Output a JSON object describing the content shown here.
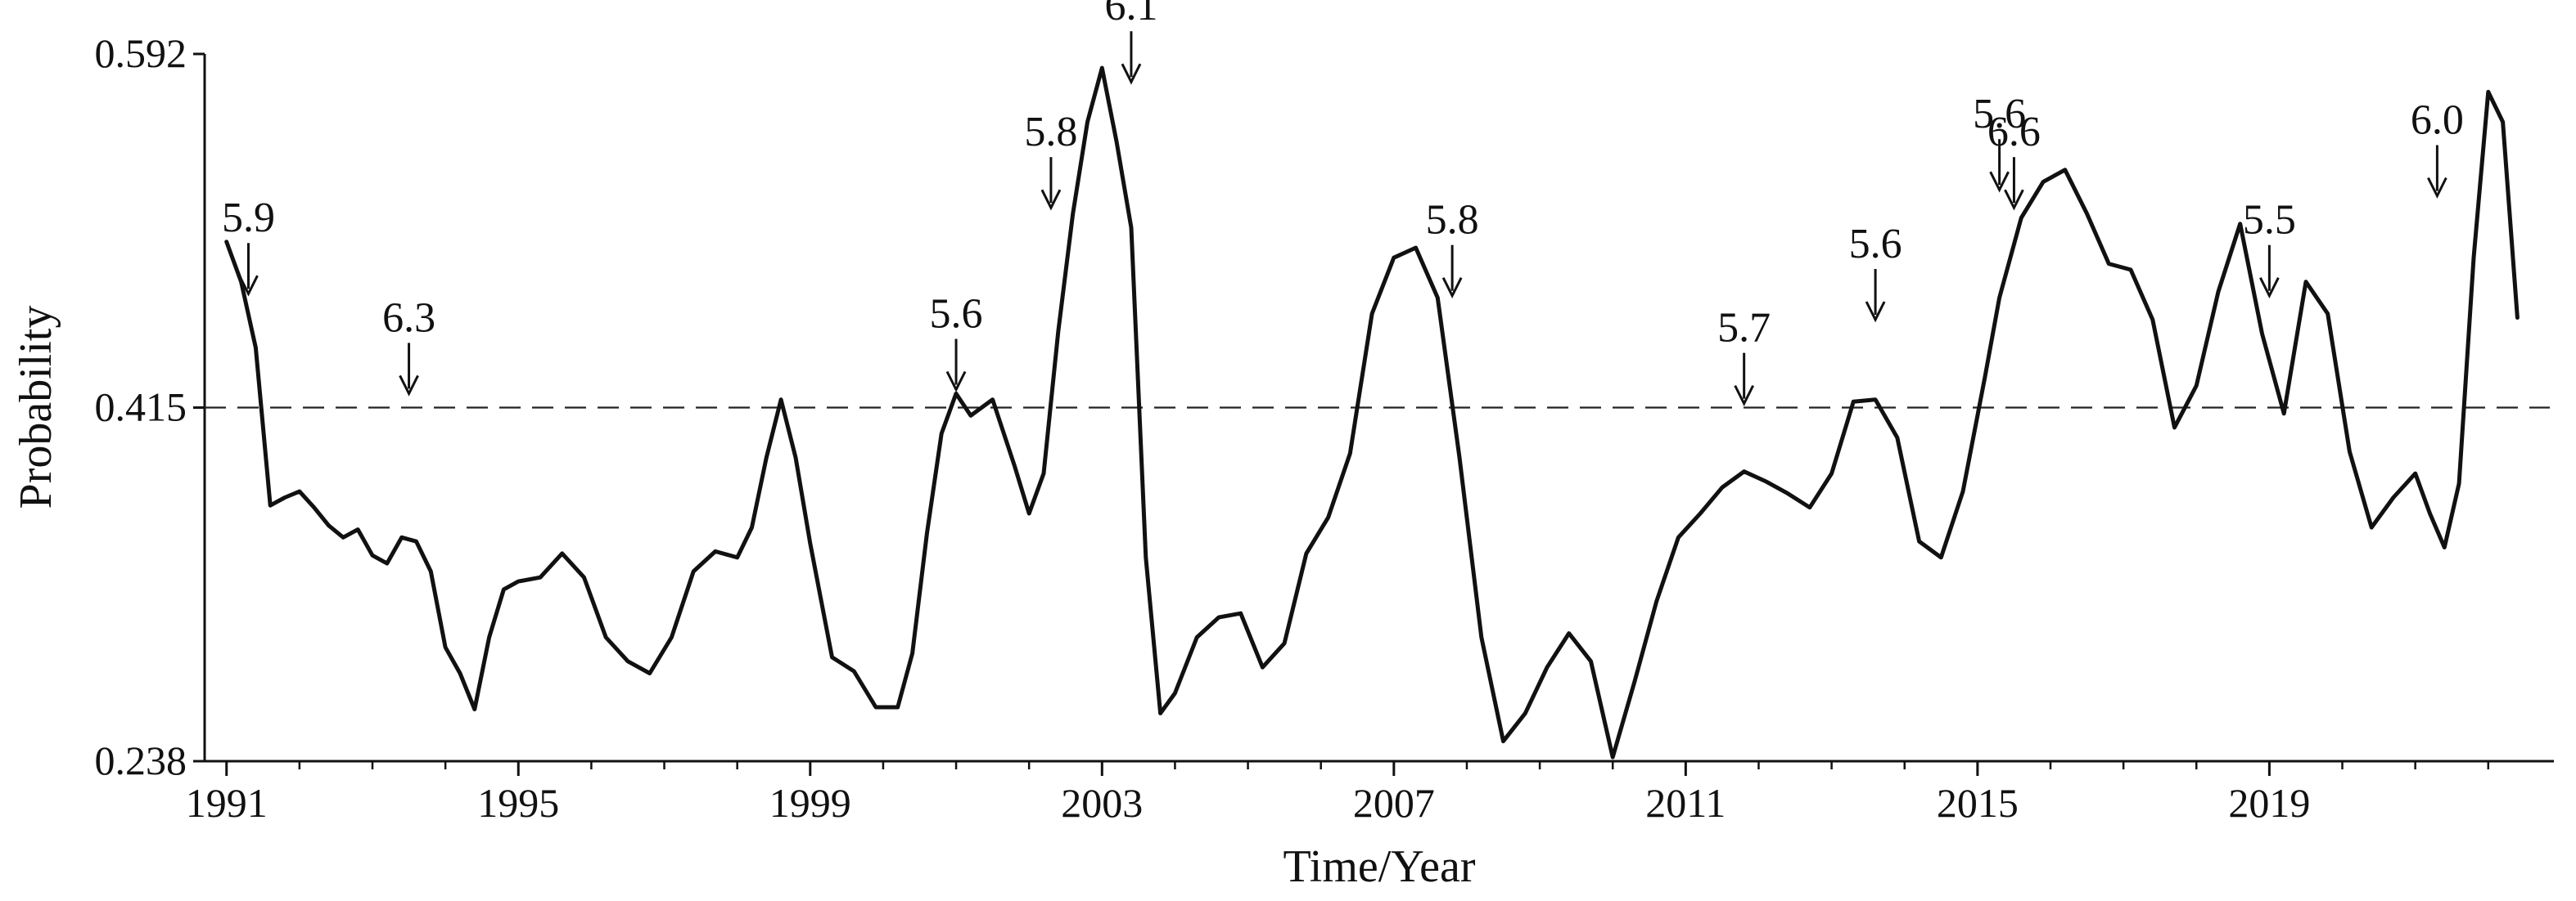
{
  "chart_data": {
    "type": "line",
    "title": "",
    "xlabel": "Time/Year",
    "ylabel": "Probability",
    "xlim": [
      1990.7,
      2022.9
    ],
    "ylim": [
      0.238,
      0.592
    ],
    "x_ticks": [
      "1991",
      "1995",
      "1999",
      "2003",
      "2007",
      "2011",
      "2015",
      "2019"
    ],
    "y_ticks": [
      "0.238",
      "0.415",
      "0.592"
    ],
    "threshold": 0.415,
    "grid": false,
    "legend": "none",
    "line_color": "#111111",
    "series": [
      {
        "x": [
          1991.0,
          1991.2,
          1991.4,
          1991.6,
          1991.8,
          1992.0,
          1992.2,
          1992.4,
          1992.6,
          1992.8,
          1993.0,
          1993.2,
          1993.4,
          1993.6,
          1993.8,
          1994.0,
          1994.2,
          1994.4,
          1994.6,
          1994.8,
          1995.0,
          1995.3,
          1995.6,
          1995.9,
          1996.2,
          1996.5,
          1996.8,
          1997.1,
          1997.4,
          1997.7,
          1998.0,
          1998.2,
          1998.4,
          1998.6,
          1998.8,
          1999.0,
          1999.3,
          1999.6,
          1999.9,
          2000.2,
          2000.4,
          2000.6,
          2000.8,
          2001.0,
          2001.2,
          2001.5,
          2001.8,
          2002.0,
          2002.2,
          2002.4,
          2002.6,
          2002.8,
          2003.0,
          2003.2,
          2003.4,
          2003.6,
          2003.8,
          2004.0,
          2004.3,
          2004.6,
          2004.9,
          2005.2,
          2005.5,
          2005.8,
          2006.1,
          2006.4,
          2006.7,
          2007.0,
          2007.3,
          2007.6,
          2007.9,
          2008.2,
          2008.5,
          2008.8,
          2009.1,
          2009.4,
          2009.7,
          2010.0,
          2010.3,
          2010.6,
          2010.9,
          2011.2,
          2011.5,
          2011.8,
          2012.1,
          2012.4,
          2012.7,
          2013.0,
          2013.3,
          2013.6,
          2013.9,
          2014.2,
          2014.5,
          2014.8,
          2015.1,
          2015.3,
          2015.6,
          2015.9,
          2016.2,
          2016.5,
          2016.8,
          2017.1,
          2017.4,
          2017.7,
          2018.0,
          2018.3,
          2018.6,
          2018.9,
          2019.2,
          2019.5,
          2019.8,
          2020.1,
          2020.4,
          2020.7,
          2021.0,
          2021.2,
          2021.4,
          2021.6,
          2021.8,
          2022.0,
          2022.2,
          2022.4
        ],
        "y": [
          0.498,
          0.478,
          0.445,
          0.366,
          0.37,
          0.373,
          0.365,
          0.356,
          0.35,
          0.354,
          0.341,
          0.337,
          0.35,
          0.348,
          0.333,
          0.295,
          0.282,
          0.264,
          0.3,
          0.324,
          0.328,
          0.33,
          0.342,
          0.33,
          0.3,
          0.288,
          0.282,
          0.3,
          0.333,
          0.343,
          0.34,
          0.355,
          0.39,
          0.419,
          0.39,
          0.347,
          0.29,
          0.283,
          0.265,
          0.265,
          0.292,
          0.352,
          0.402,
          0.422,
          0.411,
          0.419,
          0.386,
          0.362,
          0.382,
          0.453,
          0.512,
          0.558,
          0.585,
          0.548,
          0.505,
          0.34,
          0.262,
          0.272,
          0.3,
          0.31,
          0.312,
          0.285,
          0.297,
          0.342,
          0.36,
          0.392,
          0.462,
          0.49,
          0.495,
          0.47,
          0.39,
          0.3,
          0.248,
          0.262,
          0.285,
          0.302,
          0.288,
          0.24,
          0.278,
          0.318,
          0.35,
          0.362,
          0.375,
          0.383,
          0.378,
          0.372,
          0.365,
          0.382,
          0.418,
          0.419,
          0.4,
          0.348,
          0.34,
          0.373,
          0.43,
          0.47,
          0.51,
          0.528,
          0.534,
          0.512,
          0.487,
          0.484,
          0.459,
          0.405,
          0.426,
          0.473,
          0.507,
          0.452,
          0.412,
          0.478,
          0.462,
          0.393,
          0.355,
          0.37,
          0.382,
          0.362,
          0.345,
          0.377,
          0.49,
          0.573,
          0.558,
          0.46
        ]
      }
    ],
    "annotations": [
      {
        "label": "5.9",
        "x": 1991.3,
        "y": 0.472
      },
      {
        "label": "6.3",
        "x": 1993.5,
        "y": 0.422
      },
      {
        "label": "5.6",
        "x": 2001.0,
        "y": 0.424
      },
      {
        "label": "5.8",
        "x": 2002.3,
        "y": 0.515
      },
      {
        "label": "6.1",
        "x": 2003.4,
        "y": 0.578
      },
      {
        "label": "5.8",
        "x": 2007.8,
        "y": 0.471
      },
      {
        "label": "5.7",
        "x": 2011.8,
        "y": 0.417
      },
      {
        "label": "5.6",
        "x": 2013.6,
        "y": 0.459
      },
      {
        "label": "5.6",
        "x": 2015.3,
        "y": 0.524
      },
      {
        "label": "6.6",
        "x": 2015.5,
        "y": 0.515
      },
      {
        "label": "5.5",
        "x": 2019.0,
        "y": 0.471
      },
      {
        "label": "6.0",
        "x": 2021.3,
        "y": 0.521
      }
    ]
  }
}
